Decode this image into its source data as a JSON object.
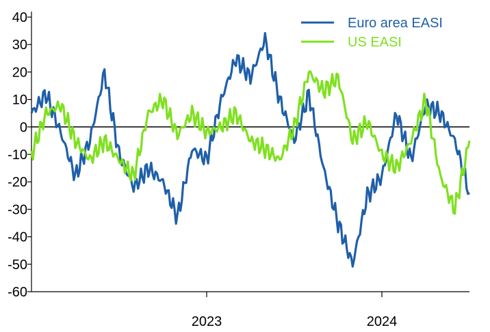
{
  "chart_data": {
    "type": "line",
    "title": "",
    "xlabel": "",
    "ylabel": "",
    "ylim": [
      -60,
      40
    ],
    "yticks": [
      40,
      30,
      20,
      10,
      0,
      -10,
      -20,
      -30,
      -40,
      -50,
      -60
    ],
    "x_range": [
      "2022-01",
      "2024-07"
    ],
    "x_tick_labels": [
      {
        "label": "2023",
        "date": "2023-01"
      },
      {
        "label": "2024",
        "date": "2024-01"
      }
    ],
    "zero_line": true,
    "grid": false,
    "legend_position": "top-right",
    "series": [
      {
        "name": "Euro area EASI",
        "color": "#1f5fa8",
        "x": [
          "2022-01",
          "2022-02",
          "2022-03",
          "2022-04",
          "2022-05",
          "2022-06",
          "2022-07",
          "2022-08",
          "2022-09",
          "2022-10",
          "2022-11",
          "2022-12",
          "2023-01",
          "2023-02",
          "2023-03",
          "2023-04",
          "2023-05",
          "2023-06",
          "2023-07",
          "2023-08",
          "2023-09",
          "2023-10",
          "2023-11",
          "2023-12",
          "2024-01",
          "2024-02",
          "2024-03",
          "2024-04",
          "2024-05",
          "2024-06",
          "2024-07"
        ],
        "values": [
          5,
          12,
          -2,
          -18,
          -5,
          20,
          -10,
          -22,
          -15,
          -20,
          -33,
          -8,
          -12,
          10,
          25,
          18,
          32,
          10,
          -5,
          12,
          -15,
          -35,
          -50,
          -25,
          -18,
          5,
          -12,
          8,
          5,
          -5,
          -24
        ]
      },
      {
        "name": "US EASI",
        "color": "#7fe020",
        "x": [
          "2022-01",
          "2022-02",
          "2022-03",
          "2022-04",
          "2022-05",
          "2022-06",
          "2022-07",
          "2022-08",
          "2022-09",
          "2022-10",
          "2022-11",
          "2022-12",
          "2023-01",
          "2023-02",
          "2023-03",
          "2023-04",
          "2023-05",
          "2023-06",
          "2023-07",
          "2023-08",
          "2023-09",
          "2023-10",
          "2023-11",
          "2023-12",
          "2024-01",
          "2024-02",
          "2024-03",
          "2024-04",
          "2024-05",
          "2024-06",
          "2024-07"
        ],
        "values": [
          -10,
          5,
          8,
          -5,
          -12,
          -5,
          -12,
          -18,
          5,
          10,
          -3,
          5,
          -2,
          0,
          5,
          -5,
          -8,
          -12,
          0,
          20,
          13,
          18,
          -5,
          2,
          -10,
          -15,
          -5,
          10,
          -18,
          -30,
          -5
        ]
      }
    ]
  }
}
